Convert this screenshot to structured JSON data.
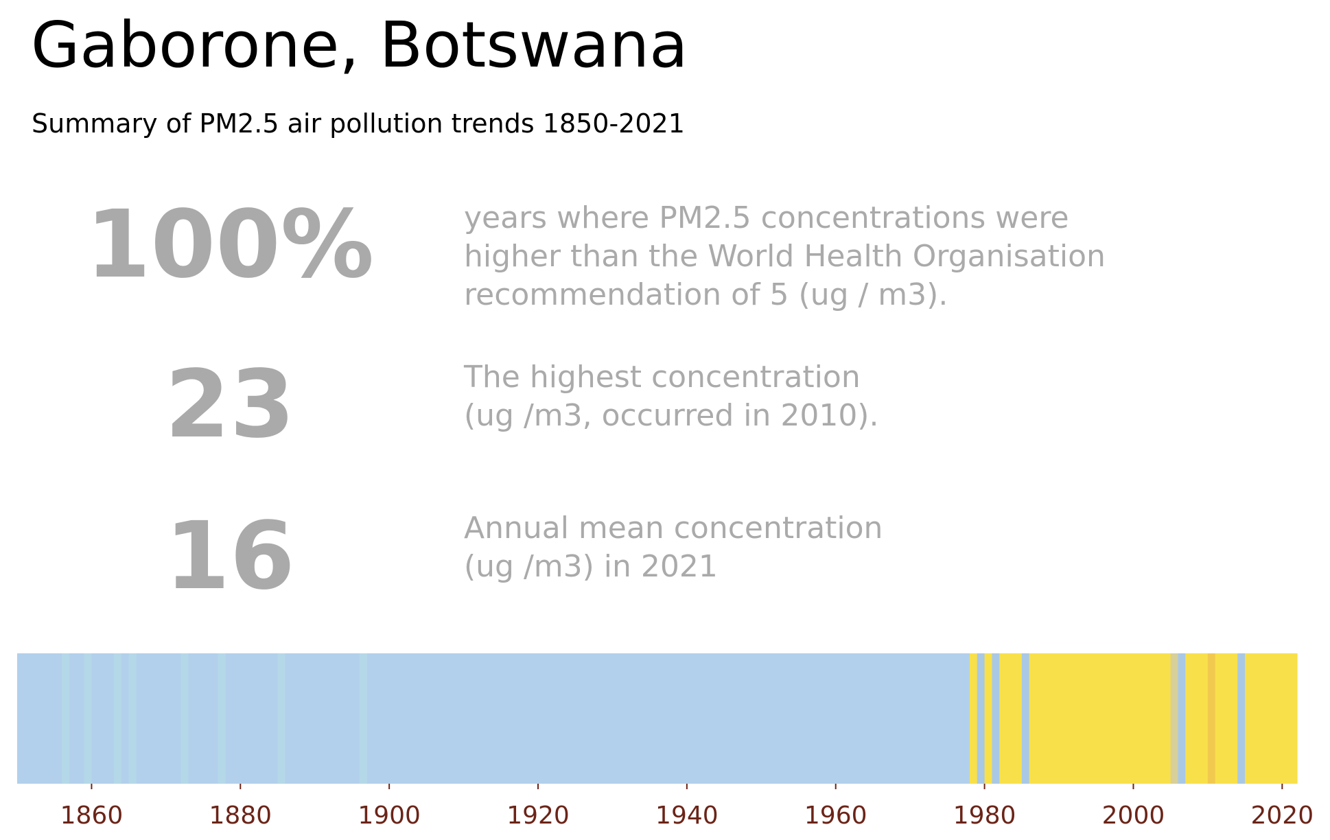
{
  "header": {
    "title": "Gaborone, Botswana",
    "subtitle": "Summary of PM2.5 air pollution trends 1850-2021"
  },
  "stats": [
    {
      "value": "100%",
      "lines": [
        "years where PM2.5 concentrations were",
        "higher than the World Health Organisation",
        "recommendation of 5 (ug / m3)."
      ]
    },
    {
      "value": "23",
      "lines": [
        "The highest concentration",
        "(ug /m3, occurred in 2010)."
      ]
    },
    {
      "value": "16",
      "lines": [
        "Annual mean concentration",
        "(ug /m3) in 2021"
      ]
    }
  ],
  "chart_data": {
    "type": "heatmap",
    "description_role": "warming-stripes style annual PM2.5 categories",
    "x_range": [
      1850,
      2022
    ],
    "xticks": [
      1860,
      1880,
      1900,
      1920,
      1940,
      1960,
      1980,
      2000,
      2020
    ],
    "tick_color": "#6b2418",
    "categories": {
      "low": "#b2d0ec",
      "low_alt": "#b5d8e8",
      "mid": "#f8e04a",
      "high": "#f2c94f",
      "grey": "#d8cf9a",
      "blue_mid": "#a9c8e6"
    },
    "stripes": [
      {
        "start": 1850,
        "end": 1856,
        "category": "low"
      },
      {
        "start": 1856,
        "end": 1857,
        "category": "low_alt"
      },
      {
        "start": 1857,
        "end": 1859,
        "category": "low"
      },
      {
        "start": 1859,
        "end": 1860,
        "category": "low_alt"
      },
      {
        "start": 1860,
        "end": 1863,
        "category": "low"
      },
      {
        "start": 1863,
        "end": 1864,
        "category": "low_alt"
      },
      {
        "start": 1864,
        "end": 1865,
        "category": "low"
      },
      {
        "start": 1865,
        "end": 1866,
        "category": "low_alt"
      },
      {
        "start": 1866,
        "end": 1872,
        "category": "low"
      },
      {
        "start": 1872,
        "end": 1873,
        "category": "low_alt"
      },
      {
        "start": 1873,
        "end": 1877,
        "category": "low"
      },
      {
        "start": 1877,
        "end": 1878,
        "category": "low_alt"
      },
      {
        "start": 1878,
        "end": 1885,
        "category": "low"
      },
      {
        "start": 1885,
        "end": 1886,
        "category": "low_alt"
      },
      {
        "start": 1886,
        "end": 1896,
        "category": "low"
      },
      {
        "start": 1896,
        "end": 1897,
        "category": "low_alt"
      },
      {
        "start": 1897,
        "end": 1978,
        "category": "low"
      },
      {
        "start": 1978,
        "end": 1979,
        "category": "mid"
      },
      {
        "start": 1979,
        "end": 1980,
        "category": "blue_mid"
      },
      {
        "start": 1980,
        "end": 1981,
        "category": "mid"
      },
      {
        "start": 1981,
        "end": 1982,
        "category": "blue_mid"
      },
      {
        "start": 1982,
        "end": 1985,
        "category": "mid"
      },
      {
        "start": 1985,
        "end": 1986,
        "category": "blue_mid"
      },
      {
        "start": 1986,
        "end": 2005,
        "category": "mid"
      },
      {
        "start": 2005,
        "end": 2006,
        "category": "grey"
      },
      {
        "start": 2006,
        "end": 2007,
        "category": "blue_mid"
      },
      {
        "start": 2007,
        "end": 2010,
        "category": "mid"
      },
      {
        "start": 2010,
        "end": 2011,
        "category": "high"
      },
      {
        "start": 2011,
        "end": 2014,
        "category": "mid"
      },
      {
        "start": 2014,
        "end": 2015,
        "category": "blue_mid"
      },
      {
        "start": 2015,
        "end": 2022,
        "category": "mid"
      }
    ]
  }
}
